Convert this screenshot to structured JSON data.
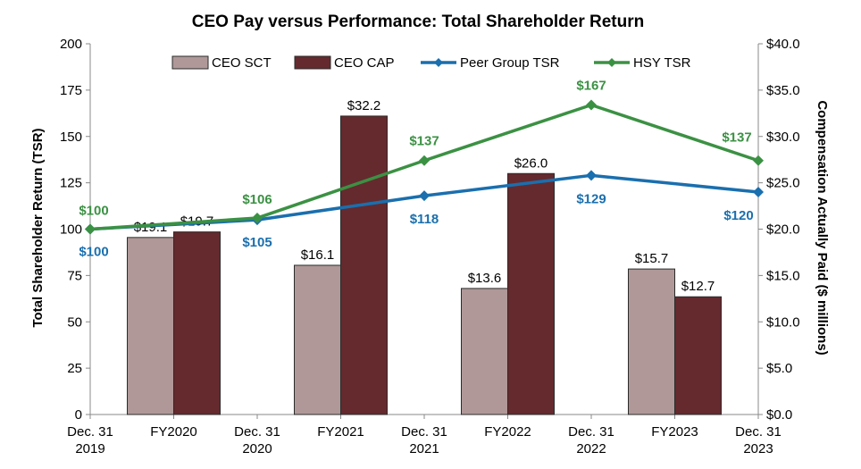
{
  "chart_data": {
    "type": "bar+line",
    "title": "CEO Pay versus Performance: Total Shareholder Return",
    "ylabel_left": "Total Shareholder Return (TSR)",
    "ylabel_right": "Compensation Actually Paid ($ millions)",
    "ylim_left": [
      0,
      200
    ],
    "yticks_left": [
      "0",
      "25",
      "50",
      "75",
      "100",
      "125",
      "150",
      "175",
      "200"
    ],
    "ylim_right": [
      0,
      40
    ],
    "yticks_right": [
      "$0.0",
      "$5.0",
      "$10.0",
      "$15.0",
      "$20.0",
      "$25.0",
      "$30.0",
      "$35.0",
      "$40.0"
    ],
    "x_labels": [
      [
        "Dec. 31",
        "2019"
      ],
      [
        "FY2020"
      ],
      [
        "Dec. 31",
        "2020"
      ],
      [
        "FY2021"
      ],
      [
        "Dec. 31",
        "2021"
      ],
      [
        "FY2022"
      ],
      [
        "Dec. 31",
        "2022"
      ],
      [
        "FY2023"
      ],
      [
        "Dec. 31",
        "2023"
      ]
    ],
    "bar_categories": [
      "FY2020",
      "FY2021",
      "FY2022",
      "FY2023"
    ],
    "bar_series": [
      {
        "name": "CEO SCT",
        "color": "#b09898",
        "values": [
          19.1,
          16.1,
          13.6,
          15.7
        ],
        "labels": [
          "$19.1",
          "$16.1",
          "$13.6",
          "$15.7"
        ]
      },
      {
        "name": "CEO CAP",
        "color": "#652a2e",
        "values": [
          19.7,
          32.2,
          26.0,
          12.7
        ],
        "labels": [
          "$19.7",
          "$32.2",
          "$26.0",
          "$12.7"
        ]
      }
    ],
    "line_x": [
      "Dec. 31 2019",
      "Dec. 31 2020",
      "Dec. 31 2021",
      "Dec. 31 2022",
      "Dec. 31 2023"
    ],
    "line_series": [
      {
        "name": "Peer Group TSR",
        "color": "#1a6fae",
        "values": [
          100,
          105,
          118,
          129,
          120
        ],
        "labels": [
          "$100",
          "$105",
          "$118",
          "$129",
          "$120"
        ]
      },
      {
        "name": "HSY TSR",
        "color": "#3b9143",
        "values": [
          100,
          106,
          137,
          167,
          137
        ],
        "labels": [
          "$100",
          "$106",
          "$137",
          "$167",
          "$137"
        ]
      }
    ],
    "legend": [
      "CEO SCT",
      "CEO CAP",
      "Peer Group TSR",
      "HSY TSR"
    ],
    "legend_position": "top",
    "grid": false
  }
}
